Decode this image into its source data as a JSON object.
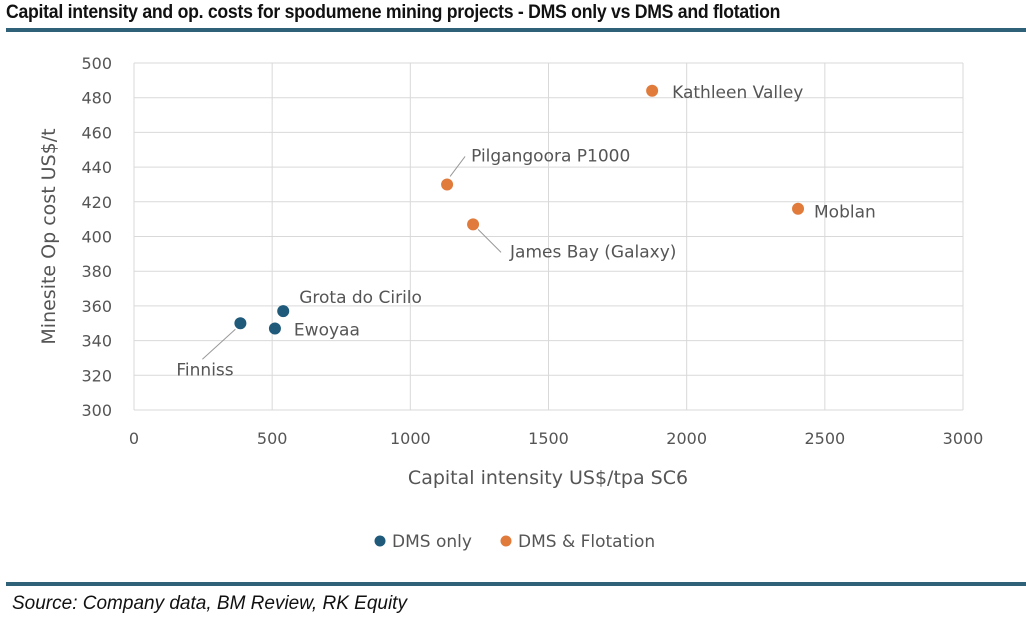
{
  "title": "Capital intensity and op. costs for spodumene mining projects - DMS only vs DMS and flotation",
  "source": "Source: Company data, BM Review, RK Equity",
  "colors": {
    "dms_only": "#1f5a7a",
    "dms_flotation": "#e07b3c",
    "rule": "#2f6178"
  },
  "chart_data": {
    "type": "scatter",
    "xlabel": "Capital intensity US$/tpa SC6",
    "ylabel": "Minesite Op cost US$/t",
    "xlim": [
      0,
      3000
    ],
    "ylim": [
      300,
      500
    ],
    "xticks": [
      0,
      500,
      1000,
      1500,
      2000,
      2500,
      3000
    ],
    "yticks": [
      300,
      320,
      340,
      360,
      380,
      400,
      420,
      440,
      460,
      480,
      500
    ],
    "grid": true,
    "legend": "bottom",
    "series": [
      {
        "name": "DMS only",
        "points": [
          {
            "label": "Finniss",
            "x": 385,
            "y": 350
          },
          {
            "label": "Ewoyaa",
            "x": 510,
            "y": 347
          },
          {
            "label": "Grota do Cirilo",
            "x": 540,
            "y": 357
          }
        ]
      },
      {
        "name": "DMS & Flotation",
        "points": [
          {
            "label": "Pilgangoora P1000",
            "x": 1133,
            "y": 430
          },
          {
            "label": "James Bay (Galaxy)",
            "x": 1227,
            "y": 407
          },
          {
            "label": "Kathleen Valley",
            "x": 1875,
            "y": 484
          },
          {
            "label": "Moblan",
            "x": 2403,
            "y": 416
          }
        ]
      }
    ]
  }
}
